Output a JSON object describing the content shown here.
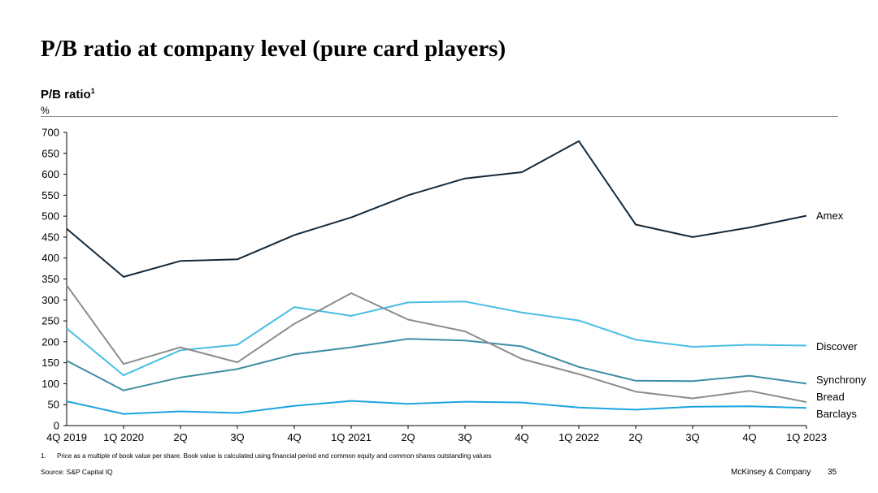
{
  "title": "P/B ratio at company level (pure card players)",
  "chart_heading": "P/B ratio",
  "chart_heading_sup": "1",
  "unit": "%",
  "footnote": {
    "marker": "1.",
    "text": "Price as a multiple of book value per share. Book value is calculated using financial period end common equity and common shares outstanding values"
  },
  "source": "Source: S&P Capital IQ",
  "brand": "McKinsey & Company",
  "page_number": "35",
  "chart_data": {
    "type": "line",
    "categories": [
      "4Q 2019",
      "1Q 2020",
      "2Q",
      "3Q",
      "4Q",
      "1Q 2021",
      "2Q",
      "3Q",
      "4Q",
      "1Q 2022",
      "2Q",
      "3Q",
      "4Q",
      "1Q 2023"
    ],
    "ylim": [
      0,
      700
    ],
    "yticks": [
      0,
      50,
      100,
      150,
      200,
      250,
      300,
      350,
      400,
      450,
      500,
      550,
      600,
      650,
      700
    ],
    "legend": "labels at line ends (right)",
    "grid": false,
    "series": [
      {
        "name": "Amex",
        "color": "#14293a",
        "values": [
          470,
          355,
          393,
          397,
          455,
          497,
          550,
          590,
          605,
          679,
          480,
          450,
          473,
          501
        ]
      },
      {
        "name": "Discover",
        "color": "#49bde4",
        "values": [
          232,
          120,
          180,
          193,
          283,
          262,
          294,
          296,
          270,
          251,
          205,
          188,
          193,
          191
        ]
      },
      {
        "name": "Synchrony",
        "color": "#3e8ea4",
        "values": [
          155,
          84,
          115,
          135,
          170,
          187,
          207,
          203,
          189,
          140,
          107,
          106,
          119,
          100
        ]
      },
      {
        "name": "Bread",
        "color": "#8c8c8c",
        "values": [
          335,
          147,
          187,
          151,
          243,
          316,
          253,
          225,
          159,
          123,
          81,
          65,
          83,
          56
        ]
      },
      {
        "name": "Barclays",
        "color": "#1ca5e0",
        "values": [
          58,
          28,
          34,
          30,
          47,
          59,
          52,
          57,
          55,
          43,
          38,
          45,
          46,
          42
        ]
      }
    ]
  }
}
